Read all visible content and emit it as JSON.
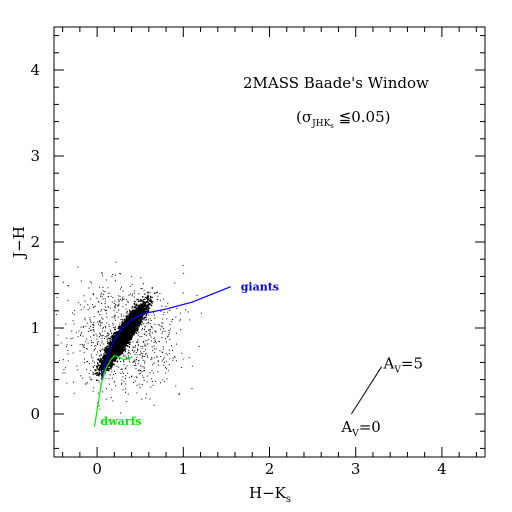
{
  "chart_data": {
    "type": "scatter",
    "title": "2MASS Baade's Window",
    "subtitle": {
      "sigma": "σ",
      "sub": "JHK",
      "subsub": "s",
      "rest": " ≦0.05"
    },
    "xlabel": {
      "main": "H−K",
      "sub": "s"
    },
    "ylabel": "J−H",
    "xlim": [
      -0.5,
      4.5
    ],
    "ylim": [
      -0.5,
      4.5
    ],
    "xticks": [
      0,
      1,
      2,
      3,
      4
    ],
    "yticks": [
      0,
      1,
      2,
      3,
      4
    ],
    "grid": false,
    "series": [
      {
        "name": "giants",
        "color": "#0000ff",
        "points": [
          [
            0.05,
            0.4
          ],
          [
            0.1,
            0.6
          ],
          [
            0.18,
            0.82
          ],
          [
            0.28,
            0.98
          ],
          [
            0.4,
            1.1
          ],
          [
            0.55,
            1.17
          ],
          [
            0.8,
            1.22
          ],
          [
            1.1,
            1.3
          ],
          [
            1.35,
            1.4
          ],
          [
            1.55,
            1.48
          ]
        ]
      },
      {
        "name": "dwarfs",
        "color": "#00ee00",
        "points": [
          [
            -0.03,
            -0.15
          ],
          [
            0.0,
            0.05
          ],
          [
            0.05,
            0.35
          ],
          [
            0.1,
            0.52
          ],
          [
            0.15,
            0.62
          ],
          [
            0.2,
            0.68
          ],
          [
            0.25,
            0.66
          ],
          [
            0.32,
            0.63
          ],
          [
            0.4,
            0.66
          ]
        ]
      }
    ],
    "reddening_vector": {
      "start_label": "A",
      "start_sub": "V",
      "start_rest": "=0",
      "end_label": "A",
      "end_sub": "V",
      "end_rest": "=5",
      "from": [
        2.95,
        0.0
      ],
      "to": [
        3.3,
        0.55
      ]
    },
    "scatter_cloud": {
      "color": "#000000",
      "core_center": [
        0.3,
        0.92
      ],
      "core_count": 9000,
      "halo_count": 900
    }
  }
}
